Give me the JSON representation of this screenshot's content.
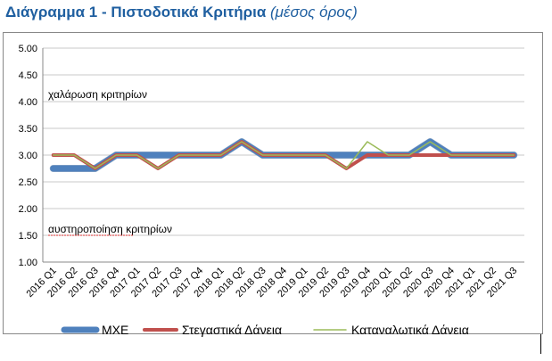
{
  "title": {
    "main": "Διάγραμμα 1 - Πιστοδοτικά Κριτήρια",
    "sub": "(μέσος όρος)"
  },
  "chart_data": {
    "type": "line",
    "ylim": [
      1.0,
      5.0
    ],
    "yticks": [
      "1.00",
      "1.50",
      "2.00",
      "2.50",
      "3.00",
      "3.50",
      "4.00",
      "4.50",
      "5.00"
    ],
    "grid": "horizontal",
    "legend": "bottom",
    "categories": [
      "2016 Q1",
      "2016 Q2",
      "2016 Q3",
      "2016 Q4",
      "2017 Q1",
      "2017 Q2",
      "2017 Q3",
      "2017 Q4",
      "2018 Q1",
      "2018 Q2",
      "2018 Q3",
      "2018 Q4",
      "2019 Q1",
      "2019 Q2",
      "2019 Q3",
      "2019 Q4",
      "2020 Q1",
      "2020 Q2",
      "2020 Q3",
      "2020 Q4",
      "2021 Q1",
      "2021 Q2",
      "2021 Q3"
    ],
    "annotations": {
      "upper": "χαλάρωση κριτηρίων",
      "lower": "αυστηροποίηση κριτηρίων"
    },
    "series": [
      {
        "name": "ΜΧΕ",
        "color": "#4f81bd",
        "values": [
          2.75,
          2.75,
          2.75,
          3.0,
          3.0,
          3.0,
          3.0,
          3.0,
          3.0,
          3.25,
          3.0,
          3.0,
          3.0,
          3.0,
          3.0,
          3.0,
          3.0,
          3.0,
          3.25,
          3.0,
          3.0,
          3.0,
          3.0
        ]
      },
      {
        "name": "Στεγαστικά Δάνεια",
        "color": "#c0504d",
        "values": [
          3.0,
          3.0,
          2.75,
          3.0,
          3.0,
          2.75,
          3.0,
          3.0,
          3.0,
          3.25,
          3.0,
          3.0,
          3.0,
          3.0,
          2.75,
          3.0,
          3.0,
          3.0,
          3.0,
          3.0,
          3.0,
          3.0,
          3.0
        ]
      },
      {
        "name": "Καταναλωτικά Δάνεια",
        "color": "#9bbb59",
        "values": [
          3.0,
          3.0,
          2.75,
          3.0,
          3.0,
          2.75,
          3.0,
          3.0,
          3.0,
          3.25,
          3.0,
          3.0,
          3.0,
          3.0,
          2.75,
          3.25,
          3.0,
          3.0,
          3.25,
          3.0,
          3.0,
          3.0,
          3.0
        ]
      }
    ]
  }
}
